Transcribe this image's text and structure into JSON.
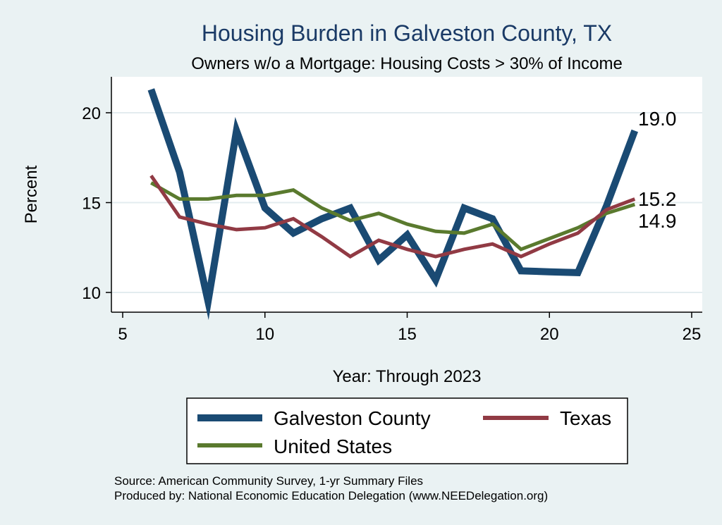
{
  "chart_data": {
    "type": "line",
    "title": "Housing Burden in Galveston County, TX",
    "subtitle": "Owners w/o a Mortgage: Housing Costs > 30% of Income",
    "xlabel": "Year: Through 2023",
    "ylabel": "Percent",
    "xlim": [
      5,
      25
    ],
    "ylim": [
      9.4,
      22.0
    ],
    "xticks": [
      5,
      10,
      15,
      20,
      25
    ],
    "yticks": [
      10,
      15,
      20
    ],
    "grid": true,
    "legend_position": "bottom",
    "series": [
      {
        "name": "Galveston County",
        "color": "#1a4a73",
        "x": [
          6,
          7,
          8,
          9,
          10,
          11,
          12,
          13,
          14,
          15,
          16,
          17,
          18,
          19,
          20,
          21,
          22,
          23
        ],
        "values": [
          21.3,
          16.7,
          9.5,
          19.0,
          14.7,
          13.3,
          14.1,
          14.7,
          11.8,
          13.2,
          10.7,
          14.7,
          14.1,
          11.2,
          11.15,
          11.1,
          14.8,
          19.0
        ],
        "end_label": "19.0"
      },
      {
        "name": "Texas",
        "color": "#913a44",
        "x": [
          6,
          7,
          8,
          9,
          10,
          11,
          12,
          13,
          14,
          15,
          16,
          17,
          18,
          19,
          20,
          21,
          22,
          23
        ],
        "values": [
          16.5,
          14.2,
          13.8,
          13.5,
          13.6,
          14.1,
          13.1,
          12.0,
          12.9,
          12.4,
          12.0,
          12.4,
          12.7,
          12.0,
          12.7,
          13.3,
          14.6,
          15.2
        ],
        "end_label": "15.2"
      },
      {
        "name": "United States",
        "color": "#5a7a2e",
        "x": [
          6,
          7,
          8,
          9,
          10,
          11,
          12,
          13,
          14,
          15,
          16,
          17,
          18,
          19,
          20,
          21,
          22,
          23
        ],
        "values": [
          16.1,
          15.2,
          15.2,
          15.4,
          15.4,
          15.7,
          14.7,
          14.0,
          14.4,
          13.8,
          13.4,
          13.3,
          13.8,
          12.4,
          13.0,
          13.6,
          14.4,
          14.9
        ],
        "end_label": "14.9"
      }
    ]
  },
  "notes": [
    "Source: American Community Survey, 1-yr Summary Files",
    "Produced by: National Economic Education Delegation (www.NEEDelegation.org)"
  ]
}
